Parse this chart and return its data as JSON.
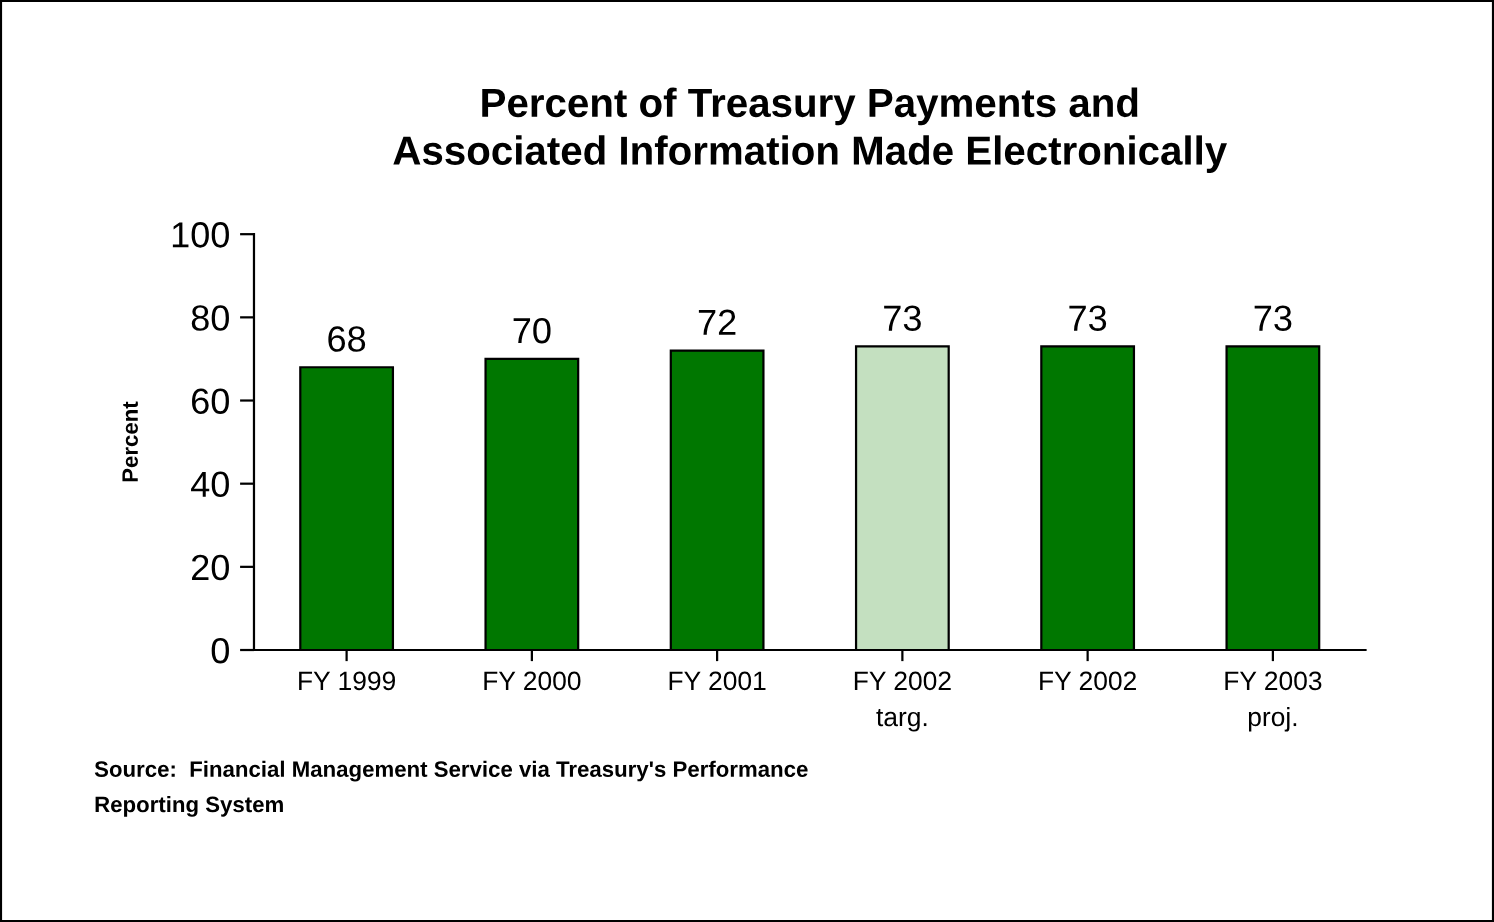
{
  "chart_data": {
    "type": "bar",
    "title": "Percent of Treasury Payments and\nAssociated Information Made Electronically",
    "ylabel": "Percent",
    "categories": [
      "FY 1999",
      "FY 2000",
      "FY 2001",
      "FY 2002\ntarg.",
      "FY 2002",
      "FY 2003\nproj."
    ],
    "values": [
      68,
      70,
      72,
      73,
      73,
      73
    ],
    "colors": [
      "#007700",
      "#007700",
      "#007700",
      "#c4e0c0",
      "#007700",
      "#007700"
    ],
    "ylim": [
      0,
      100
    ],
    "yticks": [
      0,
      20,
      40,
      60,
      80,
      100
    ],
    "grid": false,
    "data_labels": true,
    "annotations": [
      "Source:  Financial Management Service via Treasury's Performance\nReporting System"
    ]
  }
}
